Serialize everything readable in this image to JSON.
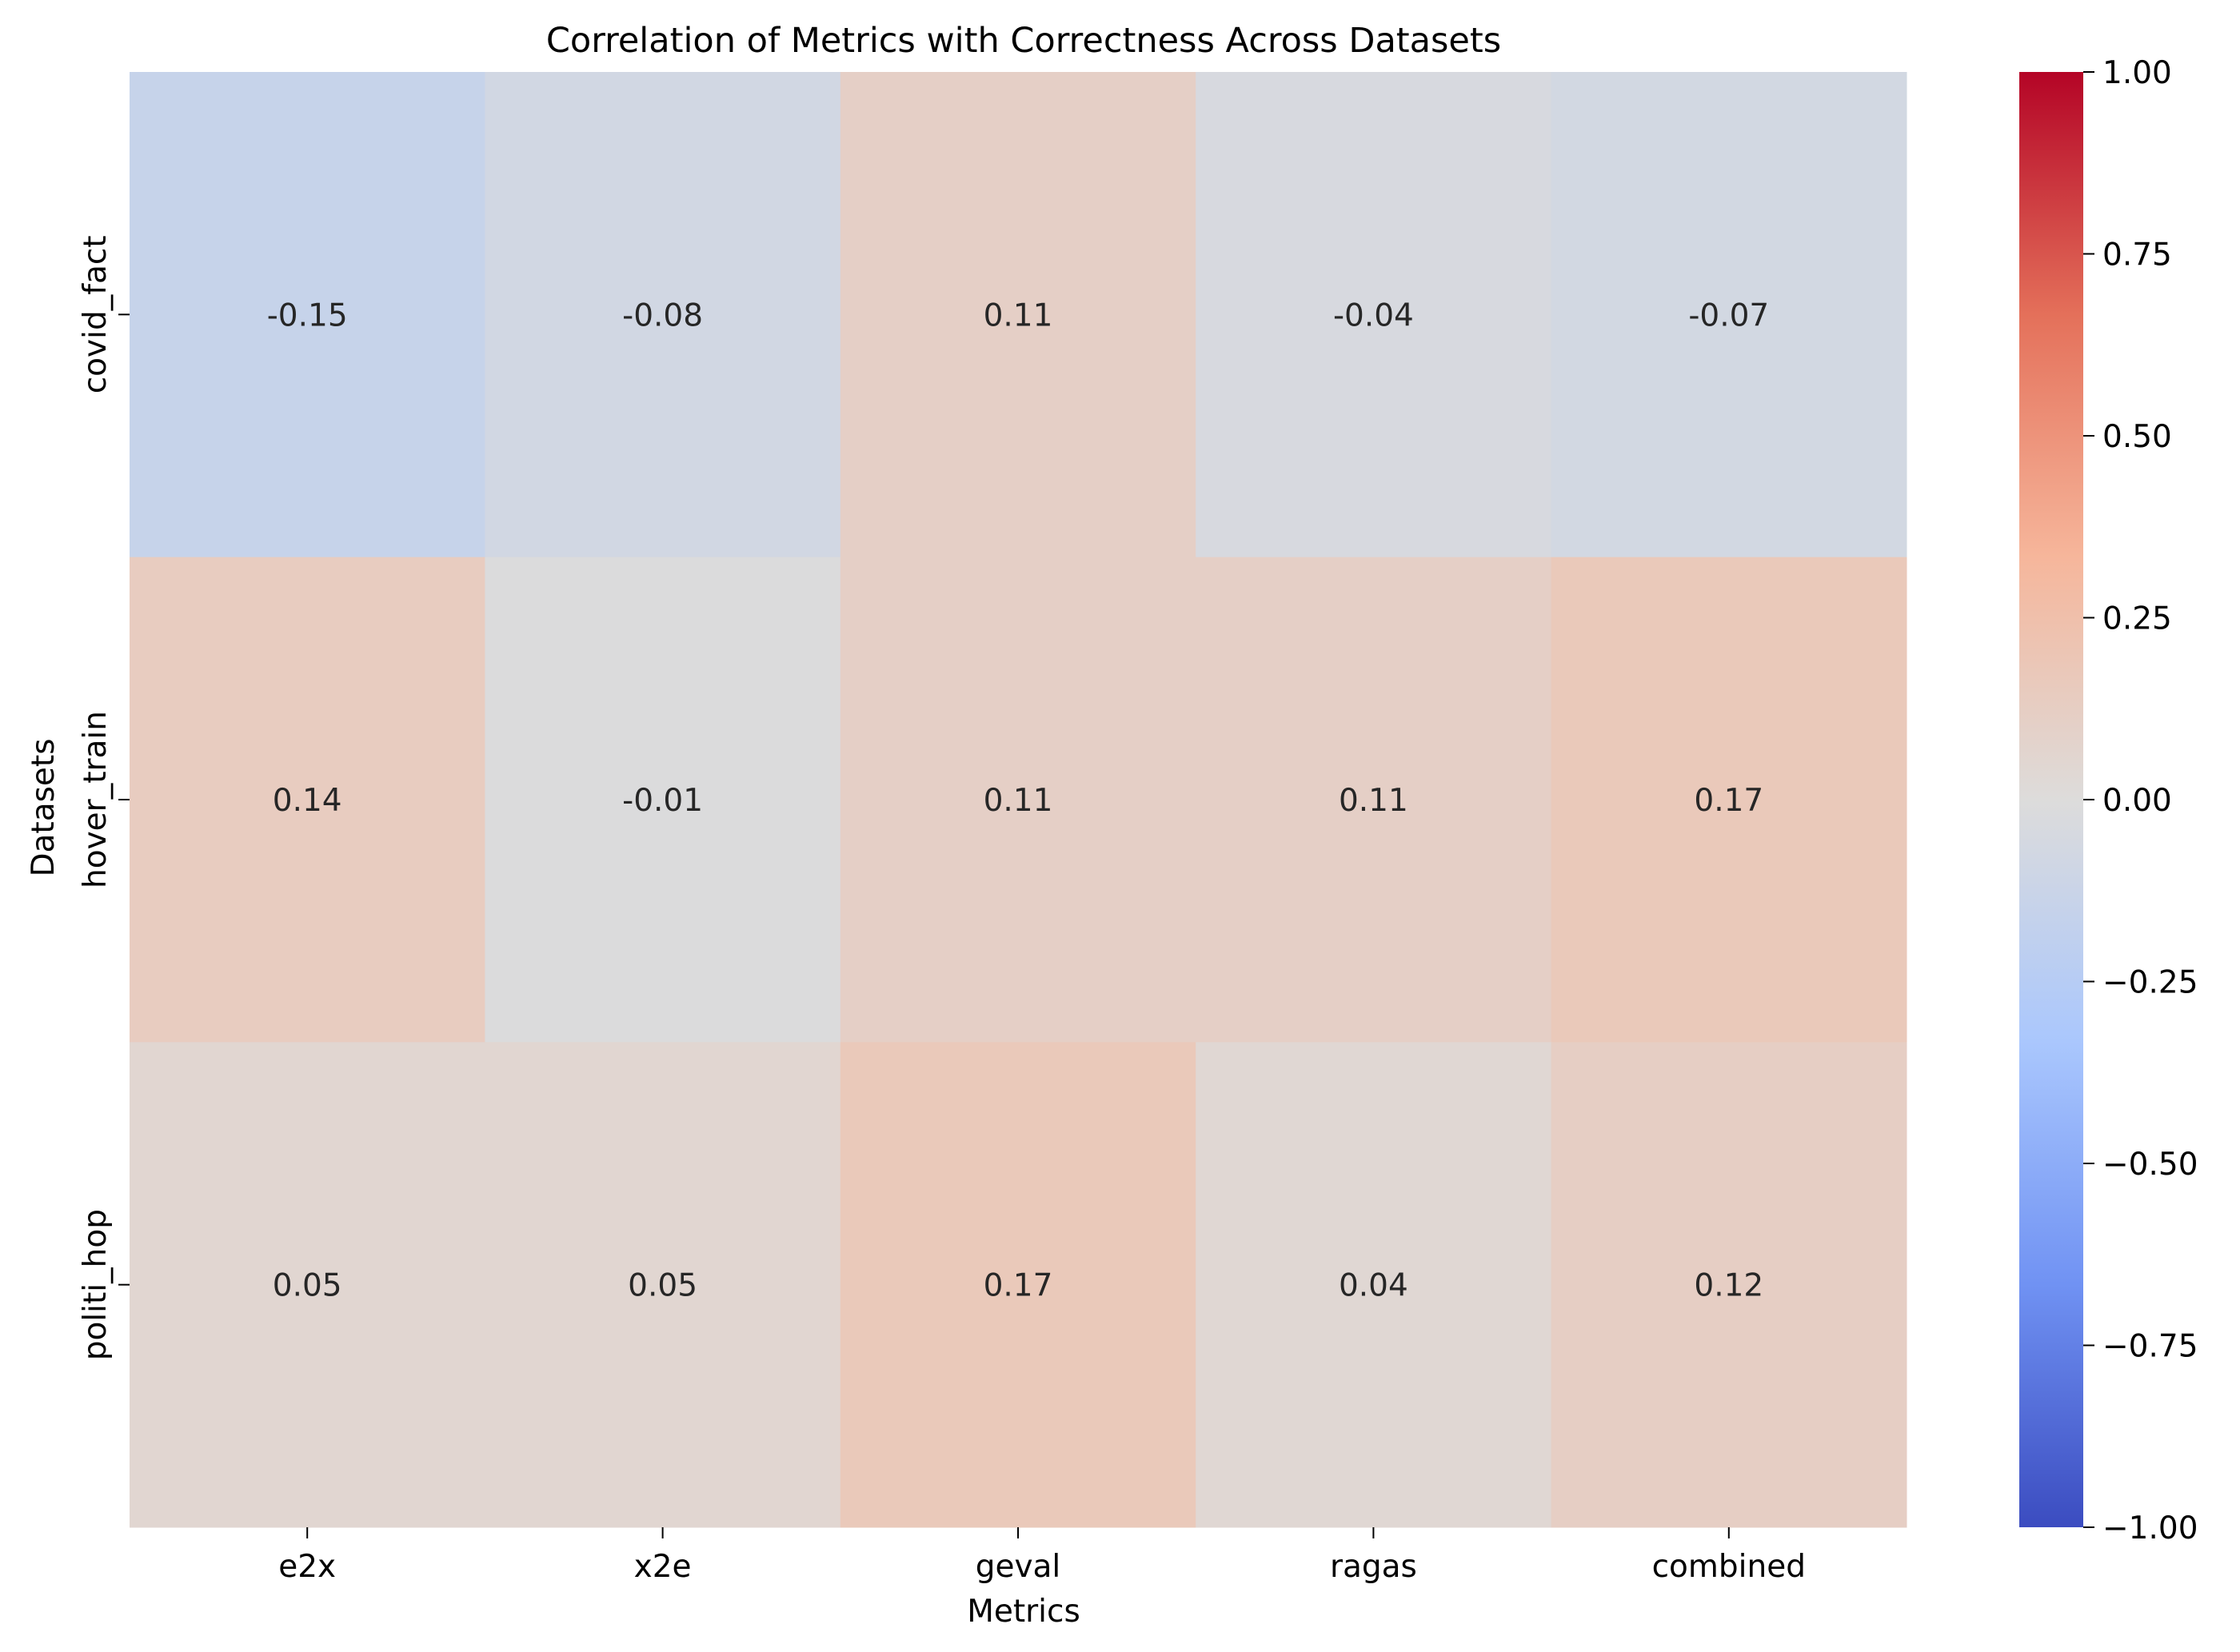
{
  "chart_data": {
    "type": "heatmap",
    "title": "Correlation of Metrics with Correctness Across Datasets",
    "xlabel": "Metrics",
    "ylabel": "Datasets",
    "x_categories": [
      "e2x",
      "x2e",
      "geval",
      "ragas",
      "combined"
    ],
    "y_categories": [
      "covid_fact",
      "hover_train",
      "politi_hop"
    ],
    "values": [
      [
        -0.15,
        -0.08,
        0.11,
        -0.04,
        -0.07
      ],
      [
        0.14,
        -0.01,
        0.11,
        0.11,
        0.17
      ],
      [
        0.05,
        0.05,
        0.17,
        0.04,
        0.12
      ]
    ],
    "value_labels": [
      [
        "-0.15",
        "-0.08",
        "0.11",
        "-0.04",
        "-0.07"
      ],
      [
        "0.14",
        "-0.01",
        "0.11",
        "0.11",
        "0.17"
      ],
      [
        "0.05",
        "0.05",
        "0.17",
        "0.04",
        "0.12"
      ]
    ],
    "colormap": "coolwarm",
    "colormap_stops": [
      "#3b4cc0",
      "#7092f3",
      "#aac7fd",
      "#dddcdb",
      "#f6b69b",
      "#e4705a",
      "#b40426"
    ],
    "vmin": -1,
    "vmax": 1,
    "colorbar_ticks": [
      1.0,
      0.75,
      0.5,
      0.25,
      0.0,
      -0.25,
      -0.5,
      -0.75,
      -1.0
    ],
    "colorbar_tick_labels": [
      "1.00",
      "0.75",
      "0.50",
      "0.25",
      "0.00",
      "−0.25",
      "−0.50",
      "−0.75",
      "−1.00"
    ],
    "colorbar_position": "right",
    "grid": false
  }
}
